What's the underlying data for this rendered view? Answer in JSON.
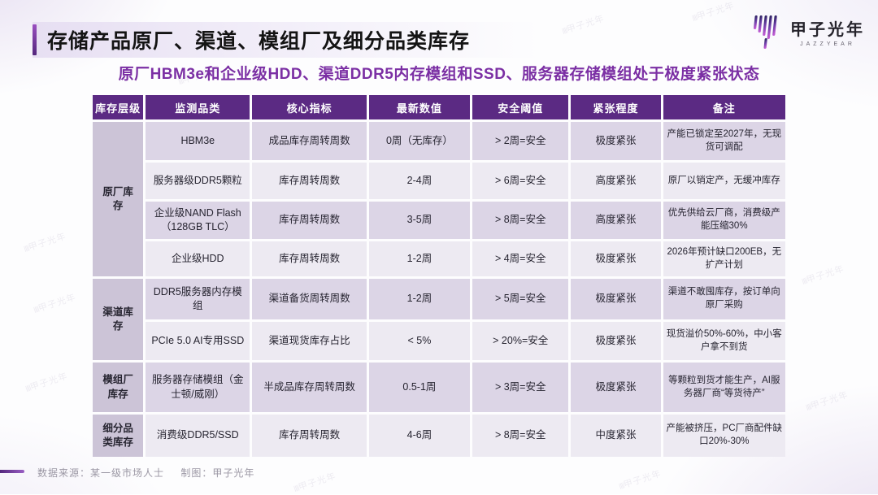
{
  "page": {
    "title": "存储产品原厂、渠道、模组厂及细分品类库存",
    "subtitle": "原厂HBM3e和企业级HDD、渠道DDR5内存模组和SSD、服务器存储模组处于极度紧张状态"
  },
  "logo": {
    "name_cn": "甲子光年",
    "name_en": "JAZZYEAR",
    "icon": "jazzyear-bars-icon"
  },
  "watermark": {
    "text": "甲子光年"
  },
  "table": {
    "headers": [
      "库存层级",
      "监测品类",
      "核心指标",
      "最新数值",
      "安全阈值",
      "紧张程度",
      "备注"
    ],
    "groups": [
      {
        "label": "原厂库存",
        "rows": [
          [
            "HBM3e",
            "成品库存周转周数",
            "0周（无库存）",
            "> 2周=安全",
            "极度紧张",
            "产能已锁定至2027年，无现货可调配"
          ],
          [
            "服务器级DDR5颗粒",
            "库存周转周数",
            "2-4周",
            "> 6周=安全",
            "高度紧张",
            "原厂以销定产，无缓冲库存"
          ],
          [
            "企业级NAND Flash（128GB TLC）",
            "库存周转周数",
            "3-5周",
            "> 8周=安全",
            "高度紧张",
            "优先供给云厂商，消费级产能压缩30%"
          ],
          [
            "企业级HDD",
            "库存周转周数",
            "1-2周",
            "> 4周=安全",
            "极度紧张",
            "2026年预计缺口200EB，无扩产计划"
          ]
        ]
      },
      {
        "label": "渠道库存",
        "rows": [
          [
            "DDR5服务器内存模组",
            "渠道备货周转周数",
            "1-2周",
            "> 5周=安全",
            "极度紧张",
            "渠道不敢囤库存，按订单向原厂采购"
          ],
          [
            "PCIe 5.0 AI专用SSD",
            "渠道现货库存占比",
            "< 5%",
            "> 20%=安全",
            "极度紧张",
            "现货溢价50%-60%，中小客户拿不到货"
          ]
        ]
      },
      {
        "label": "模组厂库存",
        "rows": [
          [
            "服务器存储模组（金士顿/威刚）",
            "半成品库存周转周数",
            "0.5-1周",
            "> 3周=安全",
            "极度紧张",
            "等颗粒到货才能生产，AI服务器厂商“等货待产”"
          ]
        ]
      },
      {
        "label": "细分品类库存",
        "rows": [
          [
            "消费级DDR5/SSD",
            "库存周转周数",
            "4-6周",
            "> 8周=安全",
            "中度紧张",
            "产能被挤压，PC厂商配件缺口20%-30%"
          ]
        ]
      }
    ]
  },
  "footer": {
    "source": "数据来源：某一级市场人士",
    "credit": "制图：甲子光年"
  },
  "colors": {
    "header_bg": "#5b2a83",
    "group_cell_bg": "#ccc4d7",
    "row_odd_bg": "#dcd5e6",
    "row_even_bg": "#edeaf2",
    "subtitle": "#7b2fa4",
    "accent": "#7d3ba8"
  }
}
